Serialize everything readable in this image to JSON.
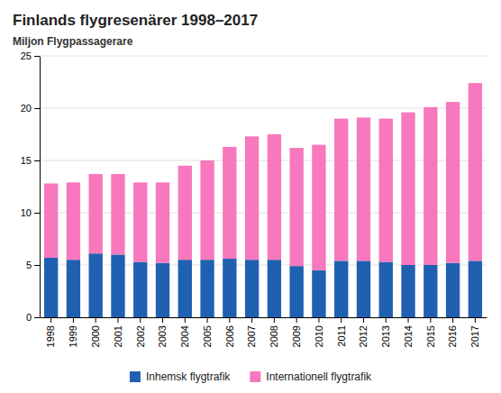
{
  "chart_data": {
    "type": "bar",
    "stacked": true,
    "title": "Finlands flygresenärer 1998–2017",
    "ylabel": "Miljon Flygpassagerare",
    "categories": [
      "1998",
      "1999",
      "2000",
      "2001",
      "2002",
      "2003",
      "2004",
      "2005",
      "2006",
      "2007",
      "2008",
      "2009",
      "2010",
      "2011",
      "2012",
      "2013",
      "2014",
      "2015",
      "2016",
      "2017"
    ],
    "series": [
      {
        "name": "Inhemsk flygtrafik",
        "color": "#2060b0",
        "values": [
          5.7,
          5.5,
          6.1,
          6.0,
          5.3,
          5.2,
          5.5,
          5.5,
          5.6,
          5.5,
          5.5,
          4.9,
          4.5,
          5.4,
          5.4,
          5.3,
          5.0,
          5.0,
          5.2,
          5.4
        ]
      },
      {
        "name": "Internationell flygtrafik",
        "color": "#f878be",
        "values": [
          7.1,
          7.4,
          7.6,
          7.7,
          7.6,
          7.7,
          9.0,
          9.5,
          10.7,
          11.8,
          12.0,
          11.3,
          12.0,
          13.6,
          13.7,
          13.7,
          14.6,
          15.1,
          15.4,
          17.0
        ]
      }
    ],
    "ylim": [
      0,
      25
    ],
    "yticks": [
      0,
      5,
      10,
      15,
      20,
      25
    ],
    "grid": true,
    "legend": "bottom"
  }
}
